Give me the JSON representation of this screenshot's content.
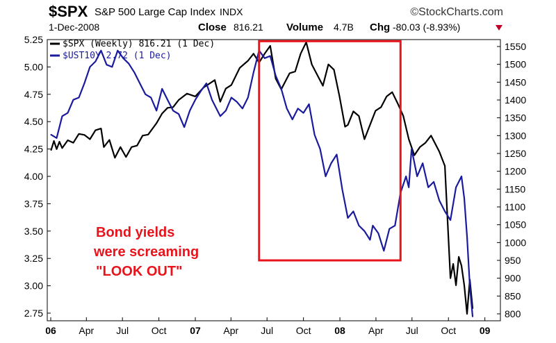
{
  "header": {
    "ticker": "$SPX",
    "name": "S&P 500 Large Cap Index",
    "exchange": "INDX",
    "date": "1-Dec-2008",
    "close_label": "Close",
    "close_value": "816.21",
    "volume_label": "Volume",
    "volume_value": "4.7B",
    "chg_label": "Chg",
    "chg_value": "-80.03 (-8.93%)",
    "chg_arrow_color": "#c0002a",
    "brand": "©StockCharts.com"
  },
  "legend": [
    {
      "label": "$SPX (Weekly) 816.21 (1 Dec)",
      "color": "#000000",
      "icon": "black-line-swatch"
    },
    {
      "label": "$UST10Y 2.72 (1 Dec)",
      "color": "#1a1a9c",
      "icon": "blue-line-swatch"
    }
  ],
  "annotation": {
    "lines": [
      "Bond yields",
      "were screaming",
      "\"LOOK OUT\""
    ],
    "color": "#e8141c",
    "box_x_range": [
      "2007-06-11",
      "2008-06-02"
    ],
    "box_y_range_spx": [
      950,
      1565
    ]
  },
  "chart_data": {
    "type": "line",
    "title": "",
    "xlabel": "",
    "x_axis": {
      "start": "2006-01-01",
      "end": "2008-12-01",
      "tick_labels": [
        {
          "label": "06",
          "date": "2006-01-01",
          "bold": true
        },
        {
          "label": "Apr",
          "date": "2006-04-01",
          "bold": false
        },
        {
          "label": "Jul",
          "date": "2006-07-01",
          "bold": false
        },
        {
          "label": "Oct",
          "date": "2006-10-01",
          "bold": false
        },
        {
          "label": "07",
          "date": "2007-01-01",
          "bold": true
        },
        {
          "label": "Apr",
          "date": "2007-04-01",
          "bold": false
        },
        {
          "label": "Jul",
          "date": "2007-07-01",
          "bold": false
        },
        {
          "label": "Oct",
          "date": "2007-10-01",
          "bold": false
        },
        {
          "label": "08",
          "date": "2008-01-01",
          "bold": true
        },
        {
          "label": "Apr",
          "date": "2008-04-01",
          "bold": false
        },
        {
          "label": "Jul",
          "date": "2008-07-01",
          "bold": false
        },
        {
          "label": "Oct",
          "date": "2008-10-01",
          "bold": false
        },
        {
          "label": "09",
          "date": "2009-01-01",
          "bold": true
        }
      ]
    },
    "y_left": {
      "series": "$UST10Y",
      "ylim": [
        2.7,
        5.2
      ],
      "ticks": [
        "5.25",
        "5.00",
        "4.75",
        "4.50",
        "4.25",
        "4.00",
        "3.75",
        "3.50",
        "3.25",
        "3.00",
        "2.75"
      ]
    },
    "y_right": {
      "series": "$SPX",
      "ylim": [
        790,
        1570
      ],
      "ticks": [
        "1550",
        "1500",
        "1450",
        "1400",
        "1350",
        "1300",
        "1250",
        "1200",
        "1150",
        "1100",
        "1050",
        "1000",
        "950",
        "900",
        "850",
        "800"
      ]
    },
    "grid": false,
    "legend_position": "top-left",
    "series": [
      {
        "name": "$SPX (Weekly)",
        "axis": "right",
        "color": "#000000",
        "points": [
          [
            "2006-01-02",
            1260
          ],
          [
            "2006-01-09",
            1285
          ],
          [
            "2006-01-16",
            1262
          ],
          [
            "2006-01-23",
            1283
          ],
          [
            "2006-01-30",
            1265
          ],
          [
            "2006-02-13",
            1287
          ],
          [
            "2006-02-27",
            1280
          ],
          [
            "2006-03-13",
            1305
          ],
          [
            "2006-03-27",
            1302
          ],
          [
            "2006-04-10",
            1290
          ],
          [
            "2006-04-24",
            1315
          ],
          [
            "2006-05-08",
            1320
          ],
          [
            "2006-05-15",
            1268
          ],
          [
            "2006-05-29",
            1288
          ],
          [
            "2006-06-12",
            1238
          ],
          [
            "2006-06-26",
            1268
          ],
          [
            "2006-07-10",
            1240
          ],
          [
            "2006-07-24",
            1268
          ],
          [
            "2006-08-07",
            1272
          ],
          [
            "2006-08-21",
            1300
          ],
          [
            "2006-09-04",
            1303
          ],
          [
            "2006-09-25",
            1335
          ],
          [
            "2006-10-09",
            1362
          ],
          [
            "2006-10-23",
            1378
          ],
          [
            "2006-11-06",
            1380
          ],
          [
            "2006-11-20",
            1400
          ],
          [
            "2006-12-11",
            1418
          ],
          [
            "2007-01-01",
            1410
          ],
          [
            "2007-01-22",
            1435
          ],
          [
            "2007-02-19",
            1456
          ],
          [
            "2007-03-05",
            1395
          ],
          [
            "2007-03-19",
            1432
          ],
          [
            "2007-04-02",
            1442
          ],
          [
            "2007-04-23",
            1490
          ],
          [
            "2007-05-14",
            1510
          ],
          [
            "2007-05-28",
            1530
          ],
          [
            "2007-06-11",
            1505
          ],
          [
            "2007-06-25",
            1530
          ],
          [
            "2007-07-09",
            1552
          ],
          [
            "2007-07-23",
            1460
          ],
          [
            "2007-08-06",
            1430
          ],
          [
            "2007-08-13",
            1445
          ],
          [
            "2007-08-27",
            1475
          ],
          [
            "2007-09-10",
            1480
          ],
          [
            "2007-09-24",
            1530
          ],
          [
            "2007-10-08",
            1562
          ],
          [
            "2007-10-22",
            1500
          ],
          [
            "2007-11-05",
            1470
          ],
          [
            "2007-11-19",
            1440
          ],
          [
            "2007-12-03",
            1500
          ],
          [
            "2007-12-17",
            1485
          ],
          [
            "2007-12-31",
            1410
          ],
          [
            "2008-01-14",
            1325
          ],
          [
            "2008-01-21",
            1330
          ],
          [
            "2008-02-04",
            1368
          ],
          [
            "2008-02-18",
            1355
          ],
          [
            "2008-03-03",
            1290
          ],
          [
            "2008-03-17",
            1330
          ],
          [
            "2008-03-31",
            1370
          ],
          [
            "2008-04-14",
            1380
          ],
          [
            "2008-04-28",
            1410
          ],
          [
            "2008-05-12",
            1422
          ],
          [
            "2008-05-26",
            1390
          ],
          [
            "2008-06-09",
            1355
          ],
          [
            "2008-06-23",
            1290
          ],
          [
            "2008-07-07",
            1245
          ],
          [
            "2008-07-21",
            1268
          ],
          [
            "2008-08-04",
            1280
          ],
          [
            "2008-08-18",
            1300
          ],
          [
            "2008-09-08",
            1255
          ],
          [
            "2008-09-22",
            1215
          ],
          [
            "2008-10-06",
            900
          ],
          [
            "2008-10-13",
            940
          ],
          [
            "2008-10-20",
            880
          ],
          [
            "2008-10-27",
            960
          ],
          [
            "2008-11-03",
            935
          ],
          [
            "2008-11-10",
            880
          ],
          [
            "2008-11-17",
            800
          ],
          [
            "2008-11-24",
            896
          ],
          [
            "2008-12-01",
            816
          ]
        ]
      },
      {
        "name": "$UST10Y",
        "axis": "left",
        "color": "#1a1a9c",
        "points": [
          [
            "2006-01-02",
            4.38
          ],
          [
            "2006-01-16",
            4.35
          ],
          [
            "2006-01-30",
            4.55
          ],
          [
            "2006-02-13",
            4.58
          ],
          [
            "2006-02-27",
            4.7
          ],
          [
            "2006-03-13",
            4.72
          ],
          [
            "2006-03-27",
            4.85
          ],
          [
            "2006-04-10",
            5.0
          ],
          [
            "2006-04-24",
            5.05
          ],
          [
            "2006-05-08",
            5.15
          ],
          [
            "2006-05-22",
            5.02
          ],
          [
            "2006-06-05",
            5.0
          ],
          [
            "2006-06-19",
            5.15
          ],
          [
            "2006-07-03",
            5.08
          ],
          [
            "2006-07-17",
            5.03
          ],
          [
            "2006-07-31",
            4.95
          ],
          [
            "2006-08-14",
            4.85
          ],
          [
            "2006-08-28",
            4.75
          ],
          [
            "2006-09-11",
            4.72
          ],
          [
            "2006-09-25",
            4.6
          ],
          [
            "2006-10-09",
            4.8
          ],
          [
            "2006-10-23",
            4.7
          ],
          [
            "2006-11-06",
            4.6
          ],
          [
            "2006-11-20",
            4.57
          ],
          [
            "2006-12-04",
            4.45
          ],
          [
            "2006-12-18",
            4.6
          ],
          [
            "2007-01-01",
            4.7
          ],
          [
            "2007-01-15",
            4.78
          ],
          [
            "2007-01-29",
            4.85
          ],
          [
            "2007-02-12",
            4.7
          ],
          [
            "2007-03-05",
            4.55
          ],
          [
            "2007-03-19",
            4.6
          ],
          [
            "2007-04-02",
            4.72
          ],
          [
            "2007-04-16",
            4.68
          ],
          [
            "2007-04-30",
            4.62
          ],
          [
            "2007-05-14",
            4.72
          ],
          [
            "2007-05-28",
            4.95
          ],
          [
            "2007-06-11",
            5.15
          ],
          [
            "2007-06-25",
            5.08
          ],
          [
            "2007-07-09",
            5.1
          ],
          [
            "2007-07-23",
            4.92
          ],
          [
            "2007-08-06",
            4.8
          ],
          [
            "2007-08-20",
            4.62
          ],
          [
            "2007-09-03",
            4.52
          ],
          [
            "2007-09-17",
            4.62
          ],
          [
            "2007-10-01",
            4.58
          ],
          [
            "2007-10-15",
            4.66
          ],
          [
            "2007-10-29",
            4.38
          ],
          [
            "2007-11-12",
            4.25
          ],
          [
            "2007-11-26",
            4.0
          ],
          [
            "2007-12-10",
            4.12
          ],
          [
            "2007-12-24",
            4.2
          ],
          [
            "2008-01-07",
            3.88
          ],
          [
            "2008-01-21",
            3.62
          ],
          [
            "2008-02-04",
            3.68
          ],
          [
            "2008-02-18",
            3.55
          ],
          [
            "2008-03-03",
            3.5
          ],
          [
            "2008-03-17",
            3.42
          ],
          [
            "2008-03-24",
            3.55
          ],
          [
            "2008-04-07",
            3.48
          ],
          [
            "2008-04-21",
            3.32
          ],
          [
            "2008-05-05",
            3.52
          ],
          [
            "2008-05-19",
            3.55
          ],
          [
            "2008-06-02",
            3.85
          ],
          [
            "2008-06-16",
            4.0
          ],
          [
            "2008-06-23",
            3.9
          ],
          [
            "2008-06-30",
            4.25
          ],
          [
            "2008-07-14",
            4.0
          ],
          [
            "2008-07-28",
            4.12
          ],
          [
            "2008-08-11",
            3.9
          ],
          [
            "2008-08-25",
            3.95
          ],
          [
            "2008-09-08",
            3.78
          ],
          [
            "2008-09-22",
            3.68
          ],
          [
            "2008-10-06",
            3.6
          ],
          [
            "2008-10-20",
            3.9
          ],
          [
            "2008-10-27",
            3.95
          ],
          [
            "2008-11-03",
            4.0
          ],
          [
            "2008-11-10",
            3.8
          ],
          [
            "2008-11-17",
            3.45
          ],
          [
            "2008-11-24",
            3.0
          ],
          [
            "2008-12-01",
            2.72
          ]
        ]
      }
    ]
  }
}
